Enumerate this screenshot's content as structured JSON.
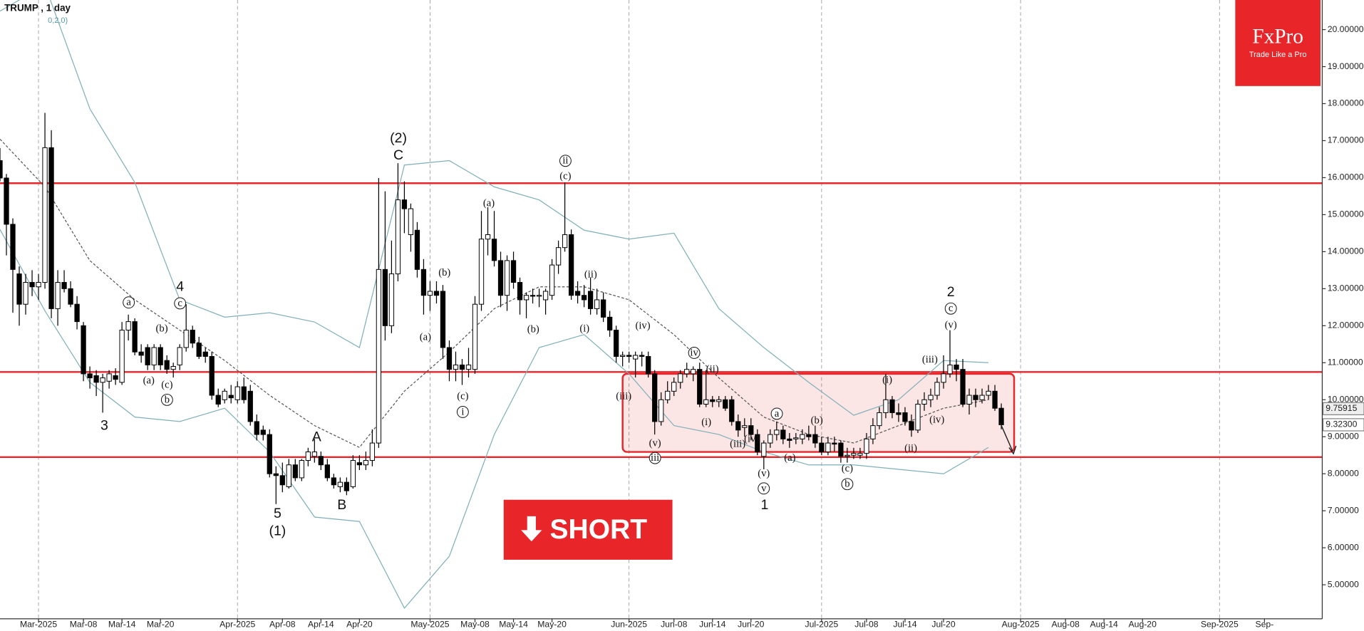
{
  "chart_data": {
    "type": "candlestick",
    "title": "TRUMP , 1 day",
    "indicator": "0,2,0)",
    "brand": {
      "name": "FxPro",
      "tagline": "Trade Like a Pro"
    },
    "signal": "SHORT",
    "x": [
      "2025-02-23",
      "2025-02-24",
      "2025-02-25",
      "2025-02-26",
      "2025-02-27",
      "2025-02-28",
      "2025-03-01",
      "2025-03-02",
      "2025-03-03",
      "2025-03-04",
      "2025-03-05",
      "2025-03-06",
      "2025-03-07",
      "2025-03-08",
      "2025-03-09",
      "2025-03-10",
      "2025-03-11",
      "2025-03-12",
      "2025-03-13",
      "2025-03-14",
      "2025-03-15",
      "2025-03-16",
      "2025-03-17",
      "2025-03-18",
      "2025-03-19",
      "2025-03-20",
      "2025-03-21",
      "2025-03-22",
      "2025-03-23",
      "2025-03-24",
      "2025-03-25",
      "2025-03-26",
      "2025-03-27",
      "2025-03-28",
      "2025-03-29",
      "2025-03-30",
      "2025-03-31",
      "2025-04-01",
      "2025-04-02",
      "2025-04-03",
      "2025-04-04",
      "2025-04-05",
      "2025-04-06",
      "2025-04-07",
      "2025-04-08",
      "2025-04-09",
      "2025-04-10",
      "2025-04-11",
      "2025-04-12",
      "2025-04-13",
      "2025-04-14",
      "2025-04-15",
      "2025-04-16",
      "2025-04-17",
      "2025-04-18",
      "2025-04-19",
      "2025-04-20",
      "2025-04-21",
      "2025-04-22",
      "2025-04-23",
      "2025-04-24",
      "2025-04-25",
      "2025-04-26",
      "2025-04-27",
      "2025-04-28",
      "2025-04-29",
      "2025-04-30",
      "2025-05-01",
      "2025-05-02",
      "2025-05-03",
      "2025-05-04",
      "2025-05-05",
      "2025-05-06",
      "2025-05-07",
      "2025-05-08",
      "2025-05-09",
      "2025-05-10",
      "2025-05-11",
      "2025-05-12",
      "2025-05-13",
      "2025-05-14",
      "2025-05-15",
      "2025-05-16",
      "2025-05-17",
      "2025-05-18",
      "2025-05-19",
      "2025-05-20",
      "2025-05-21",
      "2025-05-22",
      "2025-05-23",
      "2025-05-24",
      "2025-05-25",
      "2025-05-26",
      "2025-05-27",
      "2025-05-28",
      "2025-05-29",
      "2025-05-30",
      "2025-05-31",
      "2025-06-01",
      "2025-06-02",
      "2025-06-03",
      "2025-06-04",
      "2025-06-05",
      "2025-06-06",
      "2025-06-07",
      "2025-06-08",
      "2025-06-09",
      "2025-06-10",
      "2025-06-11",
      "2025-06-12",
      "2025-06-13",
      "2025-06-14",
      "2025-06-15",
      "2025-06-16",
      "2025-06-17",
      "2025-06-18",
      "2025-06-19",
      "2025-06-20",
      "2025-06-21",
      "2025-06-22",
      "2025-06-23",
      "2025-06-24",
      "2025-06-25",
      "2025-06-26",
      "2025-06-27",
      "2025-06-28",
      "2025-06-29",
      "2025-06-30",
      "2025-07-01",
      "2025-07-02",
      "2025-07-03",
      "2025-07-04",
      "2025-07-05",
      "2025-07-06",
      "2025-07-07",
      "2025-07-08",
      "2025-07-09",
      "2025-07-10",
      "2025-07-11",
      "2025-07-12",
      "2025-07-13",
      "2025-07-14",
      "2025-07-15",
      "2025-07-16",
      "2025-07-17",
      "2025-07-18",
      "2025-07-19",
      "2025-07-20",
      "2025-07-21",
      "2025-07-22",
      "2025-07-23",
      "2025-07-24",
      "2025-07-25",
      "2025-07-26",
      "2025-07-27",
      "2025-07-28",
      "2025-07-29"
    ],
    "open": [
      16.46,
      15.99,
      14.74,
      13.4,
      12.58,
      13.17,
      13.05,
      13.17,
      16.81,
      12.46,
      13.17,
      13.0,
      12.58,
      12.0,
      10.7,
      10.65,
      10.47,
      10.5,
      10.65,
      10.47,
      11.88,
      12.11,
      11.29,
      11.41,
      10.94,
      11.41,
      11.06,
      10.82,
      10.94,
      11.41,
      11.88,
      11.53,
      11.29,
      11.17,
      10.12,
      10.0,
      10.12,
      10.0,
      10.35,
      10.23,
      9.41,
      9.18,
      9.06,
      8.0,
      7.95,
      7.65,
      8.24,
      7.89,
      8.36,
      8.47,
      8.47,
      8.24,
      7.89,
      7.65,
      7.77,
      7.65,
      8.3,
      8.24,
      8.36,
      8.83,
      13.52,
      12.0,
      13.4,
      15.4,
      14.46,
      14.58,
      13.52,
      12.82,
      12.93,
      12.93,
      11.41,
      10.82,
      10.94,
      10.82,
      10.82,
      12.58,
      14.34,
      14.34,
      13.76,
      12.82,
      13.76,
      13.17,
      12.7,
      12.82,
      12.8,
      12.7,
      12.82,
      13.64,
      14.11,
      14.46,
      12.93,
      12.82,
      12.93,
      12.46,
      12.7,
      12.23,
      11.88,
      11.17,
      11.2,
      11.1,
      11.2,
      11.17,
      10.7,
      9.41,
      10.0,
      10.23,
      10.47,
      10.7,
      10.7,
      10.82,
      9.88,
      10.0,
      9.95,
      10.0,
      10.0,
      9.41,
      9.25,
      9.3,
      9.06,
      8.47,
      8.83,
      9.06,
      9.18,
      8.94,
      8.94,
      8.94,
      9.06,
      9.06,
      8.83,
      8.59,
      8.83,
      8.83,
      8.47,
      8.5,
      8.5,
      8.55,
      8.94,
      9.3,
      9.65,
      10.0,
      9.65,
      9.65,
      9.41,
      9.18,
      9.88,
      10.0,
      10.12,
      10.47,
      10.7,
      10.94,
      10.82,
      9.88,
      10.12,
      10.0,
      10.12,
      10.23,
      9.77
    ],
    "high": [
      16.8,
      16.1,
      14.9,
      13.6,
      13.4,
      13.5,
      13.4,
      17.75,
      17.28,
      13.5,
      13.5,
      13.2,
      12.8,
      12.1,
      10.9,
      10.8,
      10.7,
      10.8,
      10.85,
      12.1,
      12.3,
      12.2,
      11.5,
      11.5,
      11.5,
      11.5,
      11.2,
      11.0,
      11.5,
      12.58,
      12.0,
      11.7,
      11.4,
      11.3,
      10.3,
      10.3,
      10.4,
      10.5,
      10.6,
      10.4,
      9.6,
      9.3,
      9.2,
      8.2,
      8.3,
      8.4,
      8.4,
      8.4,
      8.7,
      8.94,
      8.6,
      8.4,
      8.0,
      7.9,
      7.9,
      8.5,
      8.5,
      8.6,
      9.2,
      15.99,
      15.63,
      14.3,
      16.39,
      15.9,
      15.3,
      14.8,
      13.8,
      13.2,
      13.2,
      13.1,
      11.6,
      11.3,
      11.1,
      11.4,
      12.8,
      15.1,
      15.2,
      15.1,
      14.0,
      13.9,
      14.0,
      13.3,
      12.9,
      13.0,
      13.0,
      13.0,
      13.8,
      14.3,
      15.87,
      14.6,
      13.2,
      13.1,
      13.3,
      13.0,
      12.9,
      12.4,
      12.0,
      11.3,
      11.3,
      11.3,
      11.3,
      11.3,
      10.8,
      10.2,
      10.5,
      10.6,
      10.8,
      11.0,
      10.9,
      11.0,
      10.8,
      10.1,
      10.1,
      10.1,
      10.1,
      9.6,
      9.5,
      9.5,
      9.2,
      8.9,
      9.2,
      9.41,
      9.3,
      9.1,
      9.1,
      9.2,
      9.3,
      9.3,
      9.0,
      9.0,
      9.0,
      8.9,
      8.7,
      8.7,
      8.7,
      9.1,
      9.5,
      9.8,
      10.7,
      10.1,
      9.9,
      9.8,
      9.6,
      10.0,
      10.2,
      10.3,
      10.6,
      11.2,
      11.88,
      11.1,
      11.1,
      10.3,
      10.3,
      10.3,
      10.4,
      10.4,
      9.9
    ],
    "low": [
      15.9,
      13.9,
      12.35,
      12.0,
      12.3,
      12.8,
      12.7,
      13.0,
      12.2,
      12.0,
      12.9,
      12.5,
      11.9,
      10.5,
      10.3,
      10.1,
      9.65,
      10.3,
      10.4,
      10.4,
      11.6,
      11.2,
      11.0,
      10.8,
      10.8,
      10.8,
      10.7,
      10.6,
      10.8,
      11.3,
      11.4,
      11.1,
      11.0,
      10.0,
      9.8,
      9.9,
      9.9,
      9.9,
      9.9,
      9.3,
      8.9,
      8.9,
      7.9,
      7.18,
      7.5,
      7.6,
      7.8,
      7.8,
      8.2,
      8.3,
      8.1,
      7.8,
      7.6,
      7.5,
      7.42,
      7.6,
      8.1,
      8.1,
      8.2,
      8.7,
      11.6,
      11.8,
      13.2,
      14.5,
      14.0,
      13.3,
      12.3,
      12.4,
      12.6,
      11.1,
      10.5,
      10.5,
      10.4,
      10.6,
      10.7,
      12.4,
      13.9,
      13.6,
      12.5,
      12.4,
      13.0,
      12.3,
      12.2,
      12.6,
      12.5,
      12.3,
      12.7,
      13.4,
      14.0,
      12.7,
      12.6,
      12.5,
      12.3,
      12.3,
      12.1,
      11.7,
      11.0,
      10.9,
      11.0,
      10.6,
      10.9,
      10.6,
      9.06,
      9.3,
      9.9,
      10.1,
      10.3,
      10.6,
      10.5,
      9.8,
      9.8,
      9.8,
      9.8,
      9.7,
      9.3,
      9.0,
      9.0,
      8.9,
      8.5,
      8.12,
      8.7,
      8.9,
      8.8,
      8.7,
      8.8,
      8.8,
      8.9,
      8.7,
      8.5,
      8.5,
      8.6,
      8.3,
      8.3,
      8.4,
      8.4,
      8.4,
      8.8,
      9.2,
      9.5,
      9.5,
      9.4,
      9.3,
      9.0,
      9.1,
      9.7,
      9.8,
      10.0,
      10.3,
      10.6,
      10.5,
      9.8,
      9.6,
      9.8,
      9.9,
      10.0,
      9.7,
      9.2
    ],
    "close": [
      15.99,
      14.74,
      13.52,
      12.58,
      13.17,
      13.05,
      13.17,
      16.81,
      12.46,
      13.17,
      13.0,
      12.58,
      12.11,
      10.7,
      10.59,
      10.47,
      10.59,
      10.7,
      10.55,
      11.88,
      12.11,
      11.29,
      11.2,
      10.94,
      11.41,
      10.94,
      10.82,
      10.9,
      11.41,
      11.88,
      11.53,
      11.17,
      11.17,
      10.12,
      9.88,
      10.23,
      10.05,
      10.35,
      10.0,
      9.41,
      9.06,
      9.06,
      8.0,
      7.95,
      7.7,
      8.24,
      7.89,
      8.36,
      8.59,
      8.59,
      8.24,
      7.89,
      7.7,
      7.77,
      7.54,
      8.36,
      8.24,
      8.36,
      8.83,
      13.52,
      12.0,
      13.4,
      15.4,
      15.16,
      15.16,
      13.52,
      12.82,
      12.93,
      12.82,
      11.41,
      10.82,
      10.94,
      10.82,
      10.94,
      12.58,
      14.34,
      14.46,
      13.76,
      12.82,
      13.76,
      13.17,
      12.7,
      12.82,
      12.8,
      12.82,
      12.93,
      13.64,
      14.11,
      14.46,
      12.82,
      12.82,
      12.7,
      12.46,
      12.7,
      12.23,
      11.88,
      11.17,
      11.2,
      11.17,
      11.2,
      11.17,
      10.7,
      9.41,
      10.0,
      10.23,
      10.47,
      10.7,
      10.82,
      10.82,
      9.88,
      10.0,
      9.95,
      10.0,
      9.77,
      9.41,
      9.18,
      9.3,
      9.06,
      8.59,
      8.83,
      9.06,
      9.18,
      8.94,
      8.9,
      8.97,
      9.06,
      9.0,
      8.83,
      8.59,
      8.83,
      8.8,
      8.47,
      8.5,
      8.55,
      8.55,
      8.94,
      9.3,
      9.65,
      10.0,
      9.65,
      9.6,
      9.41,
      9.18,
      9.88,
      10.0,
      10.12,
      10.47,
      10.7,
      10.94,
      10.82,
      9.88,
      10.12,
      10.0,
      10.12,
      10.23,
      9.77,
      9.323
    ],
    "up_color": "#ffffff",
    "down_color": "#000000",
    "bollinger": {
      "color": "#7fb0b8",
      "middle_color": "#555555",
      "x": [
        "2025-02-23",
        "2025-03-02",
        "2025-03-09",
        "2025-03-16",
        "2025-03-23",
        "2025-03-30",
        "2025-04-06",
        "2025-04-13",
        "2025-04-20",
        "2025-04-27",
        "2025-05-04",
        "2025-05-11",
        "2025-05-18",
        "2025-05-25",
        "2025-06-01",
        "2025-06-08",
        "2025-06-15",
        "2025-06-22",
        "2025-06-29",
        "2025-07-06",
        "2025-07-13",
        "2025-07-20",
        "2025-07-27"
      ],
      "upper": [
        20.5,
        21.2,
        17.86,
        15.87,
        12.7,
        12.23,
        12.35,
        12.1,
        11.41,
        16.34,
        16.46,
        15.75,
        15.4,
        14.58,
        14.34,
        14.5,
        12.46,
        11.41,
        10.47,
        9.58,
        10.0,
        11.06,
        11.0
      ],
      "middle": [
        17.04,
        15.75,
        13.76,
        12.7,
        11.88,
        11.06,
        10.12,
        9.3,
        8.71,
        10.23,
        11.29,
        12.46,
        13.05,
        13.05,
        12.7,
        11.76,
        10.59,
        9.53,
        9.06,
        8.83,
        9.3,
        9.77,
        10.0
      ],
      "lower": [
        14.6,
        12.4,
        10.47,
        9.53,
        9.41,
        9.77,
        8.59,
        6.83,
        6.71,
        4.37,
        5.77,
        9.06,
        11.41,
        11.76,
        10.7,
        9.3,
        9.06,
        8.59,
        8.24,
        8.24,
        8.12,
        8.0,
        8.71
      ]
    },
    "hlines": [
      15.85,
      10.75,
      8.45
    ],
    "hline_color": "#e8262a",
    "zone": {
      "x": [
        "2025-05-31",
        "2025-07-31"
      ],
      "y": [
        8.59,
        10.7
      ],
      "color": "#e8262a"
    },
    "price_labels": [
      {
        "value": 9.75915,
        "label": "9.75915"
      },
      {
        "value": 9.323,
        "label": "9.32300"
      }
    ],
    "annotations": [
      "(2)",
      "C",
      "ii",
      "(c)",
      "(a)",
      "(b)",
      "(a)",
      "(c)",
      "i",
      "(ii)",
      "(i)",
      "(iv)",
      "(iii)",
      "(v)",
      "iii",
      "iv",
      "(ii)",
      "(i)",
      "(iv)",
      "(iii)",
      "a",
      "(a)",
      "(b)",
      "(v)",
      "v",
      "1",
      "(c)",
      "b",
      "(i)",
      "(ii)",
      "(iii)",
      "(iv)",
      "(v)",
      "c",
      "2",
      "a",
      "(b)",
      "(a)",
      "(c)",
      "b",
      "3",
      "c",
      "4",
      "A",
      "B",
      "5",
      "(1)",
      "(b)"
    ],
    "xlim": [
      "2025-02-23",
      "2025-09-17"
    ],
    "xticks": [
      {
        "value": "2025-03-01",
        "label": "Mar-2025",
        "major": true
      },
      {
        "value": "2025-03-08",
        "label": "Mar-08"
      },
      {
        "value": "2025-03-14",
        "label": "Mar-14"
      },
      {
        "value": "2025-03-20",
        "label": "Mar-20"
      },
      {
        "value": "2025-04-01",
        "label": "Apr-2025",
        "major": true
      },
      {
        "value": "2025-04-08",
        "label": "Apr-08"
      },
      {
        "value": "2025-04-14",
        "label": "Apr-14"
      },
      {
        "value": "2025-04-20",
        "label": "Apr-20"
      },
      {
        "value": "2025-05-01",
        "label": "May-2025",
        "major": true
      },
      {
        "value": "2025-05-08",
        "label": "May-08"
      },
      {
        "value": "2025-05-14",
        "label": "May-14"
      },
      {
        "value": "2025-05-20",
        "label": "May-20"
      },
      {
        "value": "2025-06-01",
        "label": "Jun-2025",
        "major": true
      },
      {
        "value": "2025-06-08",
        "label": "Jun-08"
      },
      {
        "value": "2025-06-14",
        "label": "Jun-14"
      },
      {
        "value": "2025-06-20",
        "label": "Jun-20"
      },
      {
        "value": "2025-07-01",
        "label": "Jul-2025",
        "major": true
      },
      {
        "value": "2025-07-08",
        "label": "Jul-08"
      },
      {
        "value": "2025-07-14",
        "label": "Jul-14"
      },
      {
        "value": "2025-07-20",
        "label": "Jul-20"
      },
      {
        "value": "2025-08-01",
        "label": "Aug-2025",
        "major": true
      },
      {
        "value": "2025-08-08",
        "label": "Aug-08"
      },
      {
        "value": "2025-08-14",
        "label": "Aug-14"
      },
      {
        "value": "2025-08-20",
        "label": "Aug-20"
      },
      {
        "value": "2025-09-01",
        "label": "Sep-2025",
        "major": true
      },
      {
        "value": "2025-09-08",
        "label": "Sep-"
      }
    ],
    "ylim": [
      4.08,
      20.8
    ],
    "yticks": [
      {
        "value": 5,
        "label": "5.00000"
      },
      {
        "value": 6,
        "label": "6.00000"
      },
      {
        "value": 7,
        "label": "7.00000"
      },
      {
        "value": 8,
        "label": "8.00000"
      },
      {
        "value": 9,
        "label": "9.00000"
      },
      {
        "value": 10,
        "label": "10.00000"
      },
      {
        "value": 11,
        "label": "11.00000"
      },
      {
        "value": 12,
        "label": "12.00000"
      },
      {
        "value": 13,
        "label": "13.00000"
      },
      {
        "value": 14,
        "label": "14.00000"
      },
      {
        "value": 15,
        "label": "15.00000"
      },
      {
        "value": 16,
        "label": "16.00000"
      },
      {
        "value": 17,
        "label": "17.00000"
      },
      {
        "value": 18,
        "label": "18.00000"
      },
      {
        "value": 19,
        "label": "19.00000"
      },
      {
        "value": 20,
        "label": "20.00000"
      }
    ]
  }
}
